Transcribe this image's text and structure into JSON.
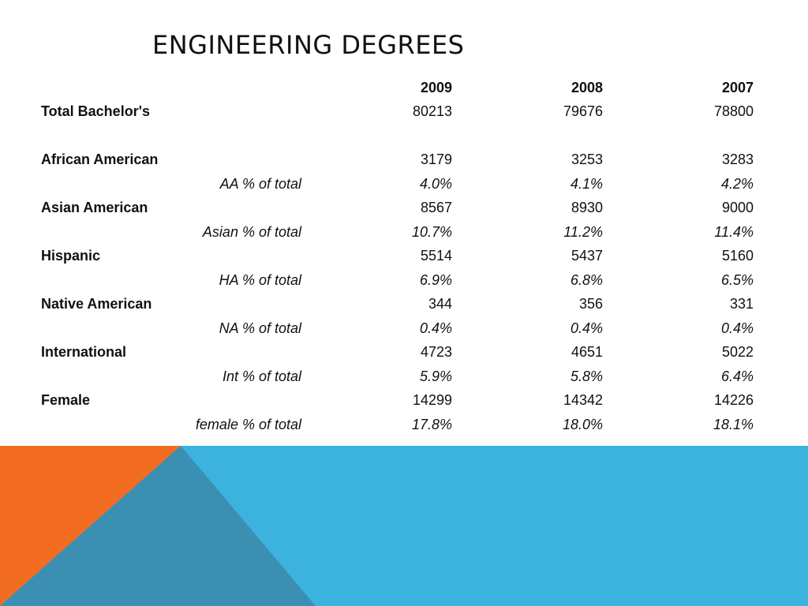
{
  "title": "ENGINEERING DEGREES",
  "colors": {
    "blue": "#3cb2df",
    "orange": "#f26d21",
    "teal": "#3a8fb3"
  },
  "table": {
    "years": [
      "2009",
      "2008",
      "2007"
    ],
    "rows": [
      {
        "kind": "group",
        "label": "Total Bachelor's",
        "values": [
          "80213",
          "79676",
          "78800"
        ]
      },
      {
        "kind": "spacer",
        "label": "",
        "values": [
          "",
          "",
          ""
        ]
      },
      {
        "kind": "group",
        "label": "African American",
        "values": [
          "3179",
          "3253",
          "3283"
        ]
      },
      {
        "kind": "pct",
        "label": "AA % of total",
        "values": [
          "4.0%",
          "4.1%",
          "4.2%"
        ]
      },
      {
        "kind": "group",
        "label": "Asian American",
        "values": [
          "8567",
          "8930",
          "9000"
        ]
      },
      {
        "kind": "pct",
        "label": "Asian % of total",
        "values": [
          "10.7%",
          "11.2%",
          "11.4%"
        ]
      },
      {
        "kind": "group",
        "label": "Hispanic",
        "values": [
          "5514",
          "5437",
          "5160"
        ]
      },
      {
        "kind": "pct",
        "label": "HA % of total",
        "values": [
          "6.9%",
          "6.8%",
          "6.5%"
        ]
      },
      {
        "kind": "group",
        "label": "Native American",
        "values": [
          "344",
          "356",
          "331"
        ]
      },
      {
        "kind": "pct",
        "label": "NA % of total",
        "values": [
          "0.4%",
          "0.4%",
          "0.4%"
        ]
      },
      {
        "kind": "group",
        "label": "International",
        "values": [
          "4723",
          "4651",
          "5022"
        ]
      },
      {
        "kind": "pct",
        "label": "Int % of total",
        "values": [
          "5.9%",
          "5.8%",
          "6.4%"
        ]
      },
      {
        "kind": "group",
        "label": "Female",
        "values": [
          "14299",
          "14342",
          "14226"
        ]
      },
      {
        "kind": "pct",
        "label": "female % of total",
        "values": [
          "17.8%",
          "18.0%",
          "18.1%"
        ]
      }
    ]
  }
}
